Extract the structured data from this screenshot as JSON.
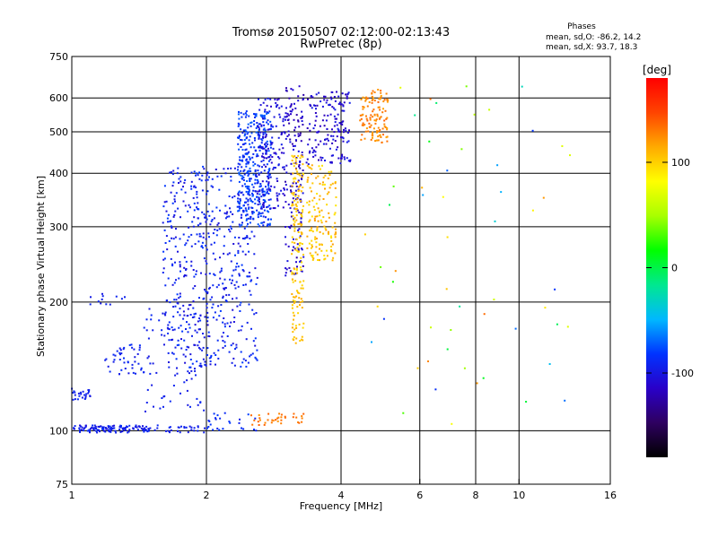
{
  "title_line1": "Tromsø 20150507 02:12:00-02:13:43",
  "title_line2": "RwPretec (8p)",
  "stats": {
    "heading": "Phases",
    "o_line": "mean, sd,O: -86.2, 14.2",
    "x_line": "mean, sd,X:  93.7, 18.3"
  },
  "colorbar": {
    "unit_label": "[deg]",
    "ticks": [
      "100",
      "0",
      "-100"
    ],
    "tick_values": [
      100,
      0,
      -100
    ],
    "range": [
      -180,
      180
    ]
  },
  "chart_data": {
    "type": "scatter",
    "xlabel": "Frequency [MHz]",
    "ylabel": "Stationary phase Virtual Height [km]",
    "x_scale": "log",
    "y_scale": "log",
    "xlim": [
      1,
      16
    ],
    "ylim": [
      75,
      750
    ],
    "x_ticks": [
      1,
      2,
      4,
      6,
      8,
      10,
      16
    ],
    "x_tick_labels": [
      "1",
      "2",
      "4",
      "6",
      "8",
      "10",
      "16"
    ],
    "y_ticks": [
      75,
      100,
      200,
      300,
      400,
      500,
      600,
      750
    ],
    "y_tick_labels": [
      "75",
      "100",
      "200",
      "300",
      "400",
      "500",
      "600",
      "750"
    ],
    "grid": true,
    "colormap": [
      "#000000",
      "#2e0060",
      "#2a00c8",
      "#0033ff",
      "#00b8ff",
      "#00e890",
      "#00ff00",
      "#a8ff00",
      "#ffff00",
      "#ffaa00",
      "#ff4400",
      "#ff0000"
    ],
    "clusters": [
      {
        "fx": [
          1.0,
          1.45
        ],
        "hy": [
          99,
          103
        ],
        "phase": [
          -105,
          -85
        ],
        "n": 110
      },
      {
        "fx": [
          1.0,
          1.12
        ],
        "hy": [
          118,
          126
        ],
        "phase": [
          -100,
          -88
        ],
        "n": 25
      },
      {
        "fx": [
          1.18,
          1.45
        ],
        "hy": [
          135,
          160
        ],
        "phase": [
          -100,
          -85
        ],
        "n": 45
      },
      {
        "fx": [
          1.1,
          1.35
        ],
        "hy": [
          195,
          210
        ],
        "phase": [
          -100,
          -90
        ],
        "n": 12
      },
      {
        "fx": [
          1.45,
          2.0
        ],
        "hy": [
          99,
          103
        ],
        "phase": [
          -100,
          -88
        ],
        "n": 40
      },
      {
        "fx": [
          1.45,
          2.0
        ],
        "hy": [
          110,
          200
        ],
        "phase": [
          -100,
          -88
        ],
        "n": 90
      },
      {
        "fx": [
          1.6,
          2.6
        ],
        "hy": [
          140,
          420
        ],
        "phase": [
          -105,
          -80
        ],
        "n": 520
      },
      {
        "fx": [
          2.35,
          2.8
        ],
        "hy": [
          300,
          560
        ],
        "phase": [
          -95,
          -70
        ],
        "n": 360
      },
      {
        "fx": [
          2.6,
          3.0
        ],
        "hy": [
          330,
          600
        ],
        "phase": [
          -115,
          -95
        ],
        "n": 150
      },
      {
        "fx": [
          3.0,
          3.3
        ],
        "hy": [
          230,
          650
        ],
        "phase": [
          -125,
          -100
        ],
        "n": 160
      },
      {
        "fx": [
          3.35,
          4.2
        ],
        "hy": [
          420,
          620
        ],
        "phase": [
          -120,
          -95
        ],
        "n": 160
      },
      {
        "fx": [
          3.1,
          3.3
        ],
        "hy": [
          160,
          440
        ],
        "phase": [
          95,
          115
        ],
        "n": 160
      },
      {
        "fx": [
          3.35,
          3.9
        ],
        "hy": [
          250,
          420
        ],
        "phase": [
          90,
          120
        ],
        "n": 140
      },
      {
        "fx": [
          4.4,
          5.1
        ],
        "hy": [
          470,
          630
        ],
        "phase": [
          115,
          140
        ],
        "n": 120
      },
      {
        "fx": [
          2.5,
          3.3
        ],
        "hy": [
          103,
          110
        ],
        "phase": [
          120,
          140
        ],
        "n": 35
      },
      {
        "fx": [
          2.0,
          2.6
        ],
        "hy": [
          100,
          110
        ],
        "phase": [
          -95,
          -80
        ],
        "n": 25
      },
      {
        "fx": [
          4.5,
          13
        ],
        "hy": [
          90,
          650
        ],
        "phase": [
          -100,
          150
        ],
        "n": 55
      }
    ]
  }
}
